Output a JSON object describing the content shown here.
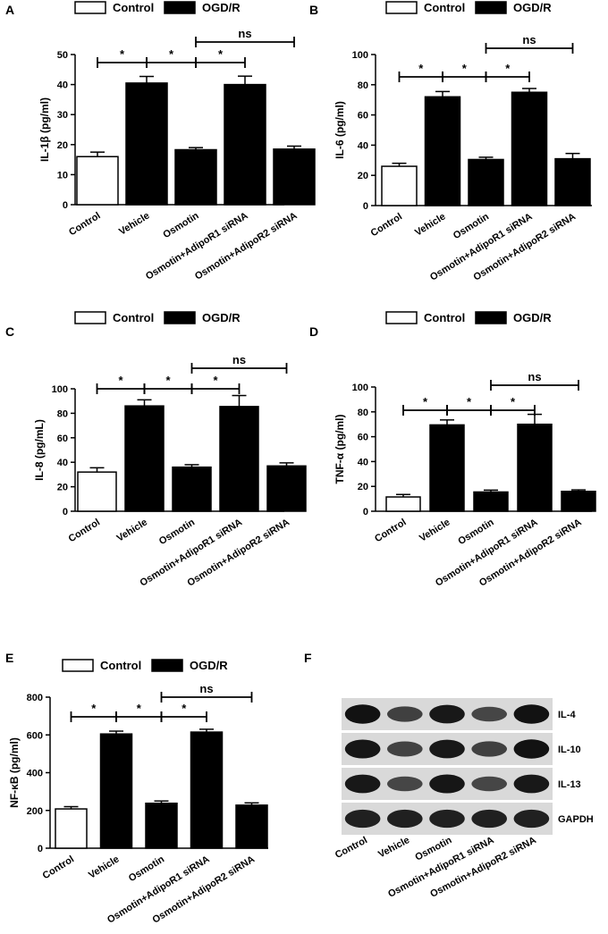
{
  "chart_data": [
    {
      "type": "bar",
      "panel": "A",
      "legend": [
        "Control",
        "OGD/R"
      ],
      "categories": [
        "Control",
        "Vehicle",
        "Osmotin",
        "Osmotin+AdipoR1 siRNA",
        "Osmotin+AdipoR2 siRNA"
      ],
      "values": [
        16,
        40.5,
        18.3,
        40,
        18.5
      ],
      "errors": [
        1.5,
        2.2,
        0.7,
        2.8,
        1.0
      ],
      "fills": [
        "white",
        "black",
        "black",
        "black",
        "black"
      ],
      "ylabel": "IL-1β (pg/ml)",
      "ylim": [
        0,
        50
      ],
      "yticks": [
        0,
        10,
        20,
        30,
        40,
        50
      ],
      "significance": [
        {
          "from": 0,
          "to": 1,
          "label": "*"
        },
        {
          "from": 1,
          "to": 2,
          "label": "*"
        },
        {
          "from": 2,
          "to": 3,
          "label": "*"
        },
        {
          "from": 2,
          "to": 4,
          "label": "ns"
        }
      ]
    },
    {
      "type": "bar",
      "panel": "B",
      "legend": [
        "Control",
        "OGD/R"
      ],
      "categories": [
        "Control",
        "Vehicle",
        "Osmotin",
        "Osmotin+AdipoR1 siRNA",
        "Osmotin+AdipoR2 siRNA"
      ],
      "values": [
        26,
        72,
        30.5,
        75,
        31
      ],
      "errors": [
        2,
        3.5,
        1.5,
        2.5,
        3.5
      ],
      "fills": [
        "white",
        "black",
        "black",
        "black",
        "black"
      ],
      "ylabel": "IL-6 (pg/ml)",
      "ylim": [
        0,
        100
      ],
      "yticks": [
        0,
        20,
        40,
        60,
        80,
        100
      ],
      "significance": [
        {
          "from": 0,
          "to": 1,
          "label": "*"
        },
        {
          "from": 1,
          "to": 2,
          "label": "*"
        },
        {
          "from": 2,
          "to": 3,
          "label": "*"
        },
        {
          "from": 2,
          "to": 4,
          "label": "ns"
        }
      ]
    },
    {
      "type": "bar",
      "panel": "C",
      "legend": [
        "Control",
        "OGD/R"
      ],
      "categories": [
        "Control",
        "Vehicle",
        "Osmotin",
        "Osmotin+AdipoR1 siRNA",
        "Osmotin+AdipoR2 siRNA"
      ],
      "values": [
        32,
        86,
        36,
        85.5,
        37
      ],
      "errors": [
        3.5,
        5,
        2,
        9,
        2.5
      ],
      "fills": [
        "white",
        "black",
        "black",
        "black",
        "black"
      ],
      "ylabel": "IL-8  (pg/mL)",
      "ylim": [
        0,
        100
      ],
      "yticks": [
        0,
        20,
        40,
        60,
        80,
        100
      ],
      "significance": [
        {
          "from": 0,
          "to": 1,
          "label": "*"
        },
        {
          "from": 1,
          "to": 2,
          "label": "*"
        },
        {
          "from": 2,
          "to": 3,
          "label": "*"
        },
        {
          "from": 2,
          "to": 4,
          "label": "ns"
        }
      ]
    },
    {
      "type": "bar",
      "panel": "D",
      "legend": [
        "Control",
        "OGD/R"
      ],
      "categories": [
        "Control",
        "Vehicle",
        "Osmotin",
        "Osmotin+AdipoR1 siRNA",
        "Osmotin+AdipoR2 siRNA"
      ],
      "values": [
        11.5,
        69.5,
        15.5,
        70,
        16
      ],
      "errors": [
        2,
        4,
        1.5,
        8,
        1.2
      ],
      "fills": [
        "white",
        "black",
        "black",
        "black",
        "black"
      ],
      "ylabel": "TNF-α (pg/ml)",
      "ylim": [
        0,
        100
      ],
      "yticks": [
        0,
        20,
        40,
        60,
        80,
        100
      ],
      "significance": [
        {
          "from": 0,
          "to": 1,
          "label": "*"
        },
        {
          "from": 1,
          "to": 2,
          "label": "*"
        },
        {
          "from": 2,
          "to": 3,
          "label": "*"
        },
        {
          "from": 2,
          "to": 4,
          "label": "ns"
        }
      ]
    },
    {
      "type": "bar",
      "panel": "E",
      "legend": [
        "Control",
        "OGD/R"
      ],
      "categories": [
        "Control",
        "Vehicle",
        "Osmotin",
        "Osmotin+AdipoR1 siRNA",
        "Osmotin+AdipoR2 siRNA"
      ],
      "values": [
        208,
        605,
        238,
        615,
        228
      ],
      "errors": [
        12,
        15,
        12,
        15,
        12
      ],
      "fills": [
        "white",
        "black",
        "black",
        "black",
        "black"
      ],
      "ylabel": "NF-κB (pg/ml)",
      "ylim": [
        0,
        800
      ],
      "yticks": [
        0,
        200,
        400,
        600,
        800
      ],
      "significance": [
        {
          "from": 0,
          "to": 1,
          "label": "*"
        },
        {
          "from": 1,
          "to": 2,
          "label": "*"
        },
        {
          "from": 2,
          "to": 3,
          "label": "*"
        },
        {
          "from": 2,
          "to": 4,
          "label": "ns"
        }
      ]
    }
  ],
  "blot": {
    "panel": "F",
    "lanes": [
      "Control",
      "Vehicle",
      "Osmotin",
      "Osmotin+AdipoR1 siRNA",
      "Osmotin+AdipoR2 siRNA"
    ],
    "rows": [
      {
        "label": "IL-4",
        "intensity": [
          0.95,
          0.6,
          0.9,
          0.55,
          0.95
        ]
      },
      {
        "label": "IL-10",
        "intensity": [
          0.92,
          0.58,
          0.9,
          0.6,
          0.95
        ]
      },
      {
        "label": "IL-13",
        "intensity": [
          0.9,
          0.55,
          0.92,
          0.55,
          0.9
        ]
      },
      {
        "label": "GAPDH",
        "intensity": [
          0.85,
          0.85,
          0.85,
          0.85,
          0.85
        ]
      }
    ]
  }
}
